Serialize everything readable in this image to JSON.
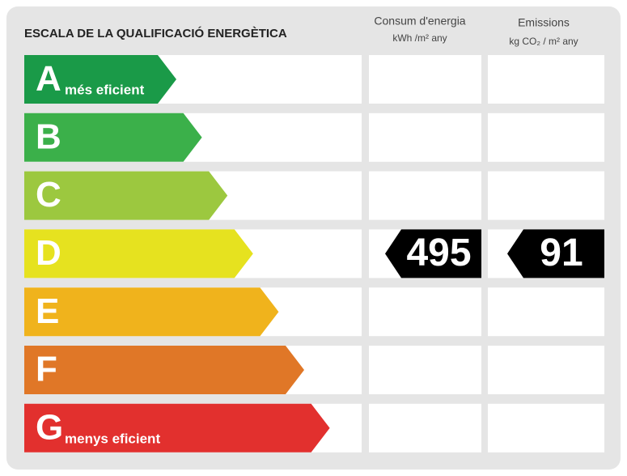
{
  "header": {
    "title": "ESCALA DE LA QUALIFICACIÓ ENERGÈTICA",
    "columns": [
      {
        "title": "Consum d'energia",
        "unit": "kWh /m² any"
      },
      {
        "title": "Emissions",
        "unit": "kg CO₂ / m² any"
      }
    ]
  },
  "ratings": [
    {
      "letter": "A",
      "label": "més eficient",
      "color": "#1a9a48"
    },
    {
      "letter": "B",
      "color": "#3bb04a"
    },
    {
      "letter": "C",
      "color": "#9cc83f"
    },
    {
      "letter": "D",
      "color": "#e6e21f"
    },
    {
      "letter": "E",
      "color": "#f0b31c"
    },
    {
      "letter": "F",
      "color": "#e07727"
    },
    {
      "letter": "G",
      "label": "menys eficient",
      "color": "#e2302e"
    }
  ],
  "results": [
    {
      "class": "D",
      "value": 495
    },
    {
      "class": "D",
      "value": 91
    }
  ]
}
